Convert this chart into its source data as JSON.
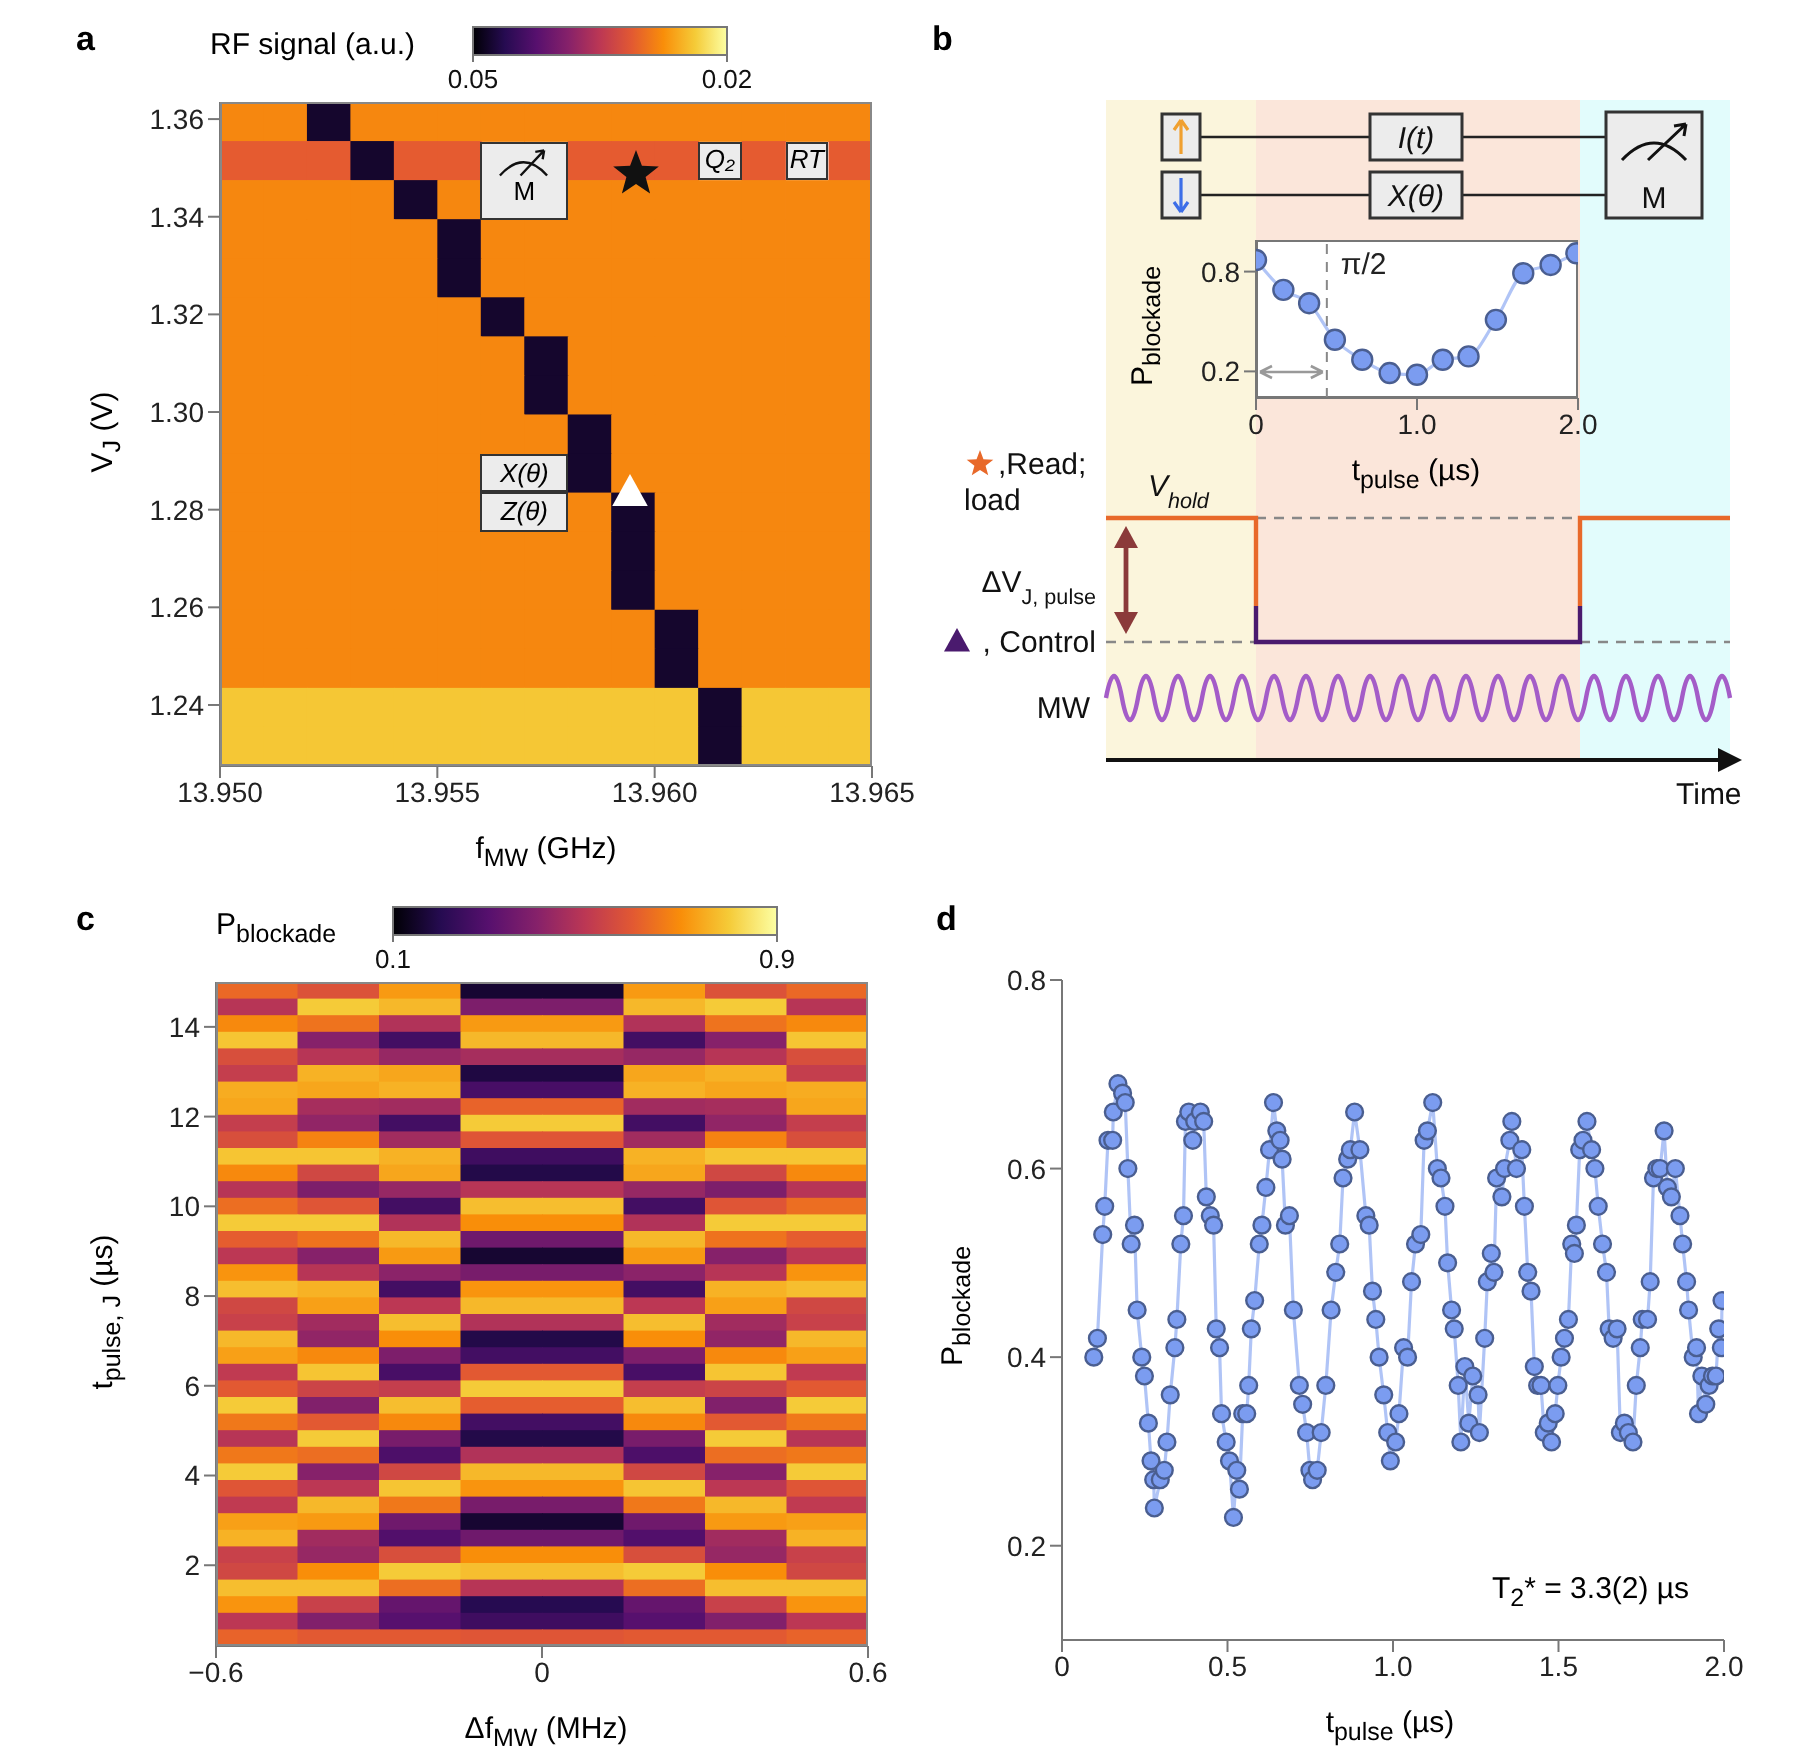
{
  "chart_data": [
    {
      "type": "heatmap",
      "title": "a",
      "clabel": "RF signal (a.u.)",
      "xlabel": "f$_{MW}$ (GHz)",
      "ylabel": "V$_{J}$ (V)",
      "x": [
        13.9505,
        13.9515,
        13.9525,
        13.9535,
        13.9545,
        13.9555,
        13.9565,
        13.9575,
        13.9585,
        13.9595,
        13.9605,
        13.9615,
        13.9625,
        13.9635,
        13.9645
      ],
      "y": [
        1.3595,
        1.3515,
        1.3435,
        1.3355,
        1.3275,
        1.3195,
        1.3115,
        1.3035,
        1.2955,
        1.2875,
        1.2795,
        1.2715,
        1.2635,
        1.2555,
        1.2475,
        1.2395,
        1.2315
      ],
      "cells": [
        [
          0.028,
          0.028,
          0.048,
          0.028,
          0.028,
          0.028,
          0.028,
          0.028,
          0.028,
          0.028,
          0.028,
          0.028,
          0.028,
          0.028,
          0.028
        ],
        [
          0.031,
          0.031,
          0.031,
          0.048,
          0.031,
          0.031,
          null,
          null,
          0.031,
          0.031,
          0.031,
          null,
          0.031,
          null,
          0.031
        ],
        [
          0.028,
          0.028,
          0.028,
          0.028,
          0.048,
          0.028,
          null,
          null,
          0.028,
          0.028,
          0.028,
          0.028,
          0.028,
          0.028,
          0.028
        ],
        [
          0.028,
          0.028,
          0.028,
          0.028,
          0.028,
          0.048,
          0.028,
          0.028,
          0.028,
          0.028,
          0.028,
          0.028,
          0.028,
          0.028,
          0.028
        ],
        [
          0.028,
          0.028,
          0.028,
          0.028,
          0.028,
          0.048,
          0.028,
          0.028,
          0.028,
          0.028,
          0.028,
          0.028,
          0.028,
          0.028,
          0.028
        ],
        [
          0.028,
          0.028,
          0.028,
          0.028,
          0.028,
          0.028,
          0.048,
          0.028,
          0.028,
          0.028,
          0.028,
          0.028,
          0.028,
          0.028,
          0.028
        ],
        [
          0.028,
          0.028,
          0.028,
          0.028,
          0.028,
          0.028,
          0.028,
          0.048,
          0.028,
          0.028,
          0.028,
          0.028,
          0.028,
          0.028,
          0.028
        ],
        [
          0.028,
          0.028,
          0.028,
          0.028,
          0.028,
          0.028,
          0.028,
          0.048,
          0.028,
          0.028,
          0.028,
          0.028,
          0.028,
          0.028,
          0.028
        ],
        [
          0.028,
          0.028,
          0.028,
          0.028,
          0.028,
          0.028,
          0.028,
          0.028,
          0.048,
          0.028,
          0.028,
          0.028,
          0.028,
          0.028,
          0.028
        ],
        [
          0.028,
          0.028,
          0.028,
          0.028,
          0.028,
          0.028,
          null,
          null,
          0.048,
          0.028,
          0.028,
          0.028,
          0.028,
          0.028,
          0.028
        ],
        [
          0.028,
          0.028,
          0.028,
          0.028,
          0.028,
          0.028,
          null,
          null,
          0.028,
          0.048,
          0.028,
          0.028,
          0.028,
          0.028,
          0.028
        ],
        [
          0.028,
          0.028,
          0.028,
          0.028,
          0.028,
          0.028,
          0.028,
          0.028,
          0.028,
          0.048,
          0.028,
          0.028,
          0.028,
          0.028,
          0.028
        ],
        [
          0.028,
          0.028,
          0.028,
          0.028,
          0.028,
          0.028,
          0.028,
          0.028,
          0.028,
          0.048,
          0.028,
          0.028,
          0.028,
          0.028,
          0.028
        ],
        [
          0.028,
          0.028,
          0.028,
          0.028,
          0.028,
          0.028,
          0.028,
          0.028,
          0.028,
          0.028,
          0.048,
          0.028,
          0.028,
          0.028,
          0.028
        ],
        [
          0.028,
          0.028,
          0.028,
          0.028,
          0.028,
          0.028,
          0.028,
          0.028,
          0.028,
          0.028,
          0.048,
          0.028,
          0.028,
          0.028,
          0.028
        ],
        [
          0.024,
          0.024,
          0.024,
          0.024,
          0.024,
          0.024,
          0.024,
          0.024,
          0.024,
          0.024,
          0.024,
          0.048,
          0.024,
          0.024,
          0.024
        ],
        [
          0.024,
          0.024,
          0.024,
          0.024,
          0.024,
          0.024,
          0.024,
          0.024,
          0.024,
          0.024,
          0.024,
          0.048,
          0.024,
          0.024,
          0.024
        ]
      ],
      "xlim": [
        13.95,
        13.965
      ],
      "ylim": [
        1.2275,
        1.3635
      ],
      "xticks": [
        {
          "value": 13.95,
          "label": "13.950"
        },
        {
          "value": 13.955,
          "label": "13.955"
        },
        {
          "value": 13.96,
          "label": "13.960"
        },
        {
          "value": 13.965,
          "label": "13.965"
        }
      ],
      "yticks": [
        1.24,
        1.26,
        1.28,
        {
          "value": 1.3,
          "label": "1.30"
        },
        1.32,
        1.34,
        1.36
      ],
      "clim": [
        0.05,
        0.02
      ],
      "cticks": [
        0.05,
        0.02
      ],
      "annotations": [
        "M",
        "Q₂",
        "RT",
        "X(θ)",
        "Z(θ)"
      ]
    },
    {
      "type": "line",
      "x": [
        0,
        0.17,
        0.33,
        0.49,
        0.66,
        0.83,
        1.0,
        1.16,
        1.32,
        1.49,
        1.66,
        1.83,
        1.99
      ],
      "values": [
        0.87,
        0.69,
        0.61,
        0.39,
        0.27,
        0.19,
        0.18,
        0.27,
        0.29,
        0.51,
        0.79,
        0.84,
        0.91
      ],
      "color": "#7b9cf0",
      "marker": "circle",
      "xlim": [
        0,
        2.0
      ],
      "ylim": [
        0.04,
        0.99
      ],
      "xticks": [
        0,
        {
          "value": 1,
          "label": "1.0"
        },
        {
          "value": 2,
          "label": "2.0"
        }
      ],
      "yticks": [
        0.2,
        0.8
      ],
      "xlabel": "t$_{pulse}$ (µs)",
      "ylabel": "P$_{blockade}$",
      "ref_lines": [
        {
          "axis": "x",
          "value": 0.44,
          "label": "π/2",
          "color": "#888888",
          "line_style": "dashed"
        }
      ]
    },
    {
      "type": "other",
      "title": "b",
      "annotations": [
        "I(t)",
        "X(θ)",
        "M",
        ",Read;",
        "load",
        "V$_{hold}$",
        "ΔV$_{J, pulse}$",
        ", Control",
        "MW",
        "Time"
      ]
    },
    {
      "type": "heatmap",
      "title": "c",
      "clabel": "P$_{blockade}$",
      "xlabel": "Δf$_{MW}$ (MHz)",
      "ylabel": "t$_{pulse, J}$ (µs)",
      "x": [
        -0.525,
        -0.375,
        -0.225,
        -0.075,
        0.075,
        0.225,
        0.375,
        0.525
      ],
      "y": [
        14.815,
        14.445,
        14.075,
        13.705,
        13.335,
        12.965,
        12.595,
        12.225,
        11.855,
        11.485,
        11.115,
        10.745,
        10.375,
        10.005,
        9.635,
        9.265,
        8.895,
        8.525,
        8.155,
        7.785,
        7.415,
        7.045,
        6.675,
        6.305,
        5.935,
        5.565,
        5.195,
        4.825,
        4.455,
        4.085,
        3.715,
        3.345,
        2.975,
        2.605,
        2.235,
        1.865,
        1.495,
        1.125,
        0.755,
        0.385
      ],
      "cells": [
        [
          0.63,
          0.58,
          0.72,
          0.16,
          0.16,
          0.72,
          0.58,
          0.63
        ],
        [
          0.49,
          0.8,
          0.77,
          0.38,
          0.38,
          0.77,
          0.8,
          0.49
        ],
        [
          0.69,
          0.65,
          0.48,
          0.72,
          0.72,
          0.48,
          0.65,
          0.69
        ],
        [
          0.79,
          0.4,
          0.26,
          0.77,
          0.77,
          0.26,
          0.4,
          0.79
        ],
        [
          0.57,
          0.49,
          0.43,
          0.46,
          0.46,
          0.43,
          0.49,
          0.57
        ],
        [
          0.52,
          0.76,
          0.74,
          0.18,
          0.18,
          0.74,
          0.76,
          0.52
        ],
        [
          0.75,
          0.74,
          0.76,
          0.27,
          0.27,
          0.76,
          0.74,
          0.75
        ],
        [
          0.74,
          0.46,
          0.45,
          0.62,
          0.62,
          0.45,
          0.46,
          0.74
        ],
        [
          0.52,
          0.42,
          0.26,
          0.8,
          0.8,
          0.26,
          0.42,
          0.52
        ],
        [
          0.57,
          0.68,
          0.45,
          0.59,
          0.59,
          0.45,
          0.68,
          0.57
        ],
        [
          0.79,
          0.79,
          0.76,
          0.25,
          0.25,
          0.76,
          0.79,
          0.79
        ],
        [
          0.69,
          0.55,
          0.74,
          0.19,
          0.19,
          0.74,
          0.55,
          0.69
        ],
        [
          0.49,
          0.38,
          0.43,
          0.49,
          0.49,
          0.43,
          0.38,
          0.49
        ],
        [
          0.64,
          0.59,
          0.26,
          0.78,
          0.78,
          0.26,
          0.59,
          0.64
        ],
        [
          0.8,
          0.8,
          0.48,
          0.7,
          0.7,
          0.48,
          0.8,
          0.8
        ],
        [
          0.61,
          0.65,
          0.77,
          0.35,
          0.35,
          0.77,
          0.65,
          0.61
        ],
        [
          0.5,
          0.4,
          0.72,
          0.16,
          0.16,
          0.72,
          0.4,
          0.5
        ],
        [
          0.71,
          0.49,
          0.41,
          0.37,
          0.37,
          0.41,
          0.49,
          0.71
        ],
        [
          0.78,
          0.76,
          0.26,
          0.71,
          0.71,
          0.26,
          0.76,
          0.78
        ],
        [
          0.55,
          0.73,
          0.5,
          0.77,
          0.77,
          0.5,
          0.73,
          0.55
        ],
        [
          0.53,
          0.45,
          0.78,
          0.48,
          0.48,
          0.78,
          0.45,
          0.53
        ],
        [
          0.77,
          0.42,
          0.7,
          0.19,
          0.19,
          0.7,
          0.42,
          0.77
        ],
        [
          0.73,
          0.69,
          0.38,
          0.26,
          0.26,
          0.38,
          0.69,
          0.73
        ],
        [
          0.51,
          0.79,
          0.27,
          0.6,
          0.6,
          0.27,
          0.79,
          0.51
        ],
        [
          0.6,
          0.54,
          0.52,
          0.8,
          0.8,
          0.52,
          0.54,
          0.6
        ],
        [
          0.8,
          0.39,
          0.78,
          0.61,
          0.61,
          0.78,
          0.39,
          0.8
        ],
        [
          0.66,
          0.6,
          0.69,
          0.26,
          0.26,
          0.69,
          0.6,
          0.66
        ],
        [
          0.49,
          0.8,
          0.37,
          0.19,
          0.19,
          0.37,
          0.8,
          0.49
        ],
        [
          0.66,
          0.64,
          0.28,
          0.48,
          0.48,
          0.28,
          0.64,
          0.66
        ],
        [
          0.8,
          0.4,
          0.55,
          0.77,
          0.77,
          0.55,
          0.4,
          0.8
        ],
        [
          0.59,
          0.5,
          0.79,
          0.71,
          0.71,
          0.79,
          0.5,
          0.59
        ],
        [
          0.51,
          0.77,
          0.66,
          0.37,
          0.37,
          0.66,
          0.77,
          0.51
        ],
        [
          0.73,
          0.72,
          0.35,
          0.16,
          0.16,
          0.35,
          0.72,
          0.73
        ],
        [
          0.76,
          0.45,
          0.29,
          0.35,
          0.35,
          0.29,
          0.45,
          0.76
        ],
        [
          0.53,
          0.43,
          0.57,
          0.7,
          0.7,
          0.57,
          0.43,
          0.53
        ],
        [
          0.55,
          0.7,
          0.8,
          0.78,
          0.78,
          0.8,
          0.7,
          0.55
        ],
        [
          0.78,
          0.78,
          0.64,
          0.49,
          0.49,
          0.64,
          0.78,
          0.78
        ],
        [
          0.71,
          0.53,
          0.33,
          0.2,
          0.2,
          0.33,
          0.53,
          0.71
        ],
        [
          0.5,
          0.39,
          0.3,
          0.25,
          0.25,
          0.3,
          0.39,
          0.5
        ],
        [
          0.62,
          0.6,
          0.6,
          0.59,
          0.59,
          0.6,
          0.6,
          0.62
        ]
      ],
      "xlim": [
        -0.6,
        0.6
      ],
      "ylim": [
        0.2,
        15
      ],
      "xticks": [
        {
          "value": -0.6,
          "label": "−0.6"
        },
        0,
        0.6
      ],
      "yticks": [
        2,
        4,
        6,
        8,
        10,
        12,
        14
      ],
      "clim": [
        0.1,
        0.9
      ],
      "cticks": [
        0.1,
        0.9
      ]
    },
    {
      "type": "line",
      "title": "d",
      "color": "#7b9cf0",
      "marker": "circle",
      "xlabel": "t$_{pulse}$ (µs)",
      "ylabel": "P$_{blockade}$",
      "xlim": [
        0,
        2.0
      ],
      "ylim": [
        0.1,
        0.8
      ],
      "xticks": [
        0,
        0.5,
        {
          "value": 1,
          "label": "1.0"
        },
        1.5,
        {
          "value": 2,
          "label": "2.0"
        }
      ],
      "yticks": [
        0.2,
        0.4,
        0.6,
        0.8
      ],
      "annotations": [
        "T$_{2}$* = 3.3(2) µs"
      ],
      "x": [
        0.096,
        0.107,
        0.123,
        0.129,
        0.139,
        0.153,
        0.155,
        0.169,
        0.183,
        0.191,
        0.199,
        0.209,
        0.219,
        0.227,
        0.241,
        0.249,
        0.261,
        0.269,
        0.277,
        0.279,
        0.297,
        0.309,
        0.317,
        0.327,
        0.341,
        0.347,
        0.359,
        0.367,
        0.373,
        0.383,
        0.395,
        0.401,
        0.418,
        0.428,
        0.436,
        0.448,
        0.458,
        0.466,
        0.476,
        0.482,
        0.496,
        0.506,
        0.518,
        0.528,
        0.536,
        0.546,
        0.558,
        0.564,
        0.572,
        0.582,
        0.596,
        0.604,
        0.616,
        0.627,
        0.639,
        0.649,
        0.659,
        0.665,
        0.675,
        0.687,
        0.699,
        0.717,
        0.727,
        0.739,
        0.749,
        0.757,
        0.771,
        0.783,
        0.797,
        0.813,
        0.827,
        0.839,
        0.849,
        0.863,
        0.871,
        0.884,
        0.9,
        0.918,
        0.928,
        0.938,
        0.948,
        0.958,
        0.972,
        0.984,
        0.992,
        1.008,
        1.018,
        1.032,
        1.044,
        1.056,
        1.068,
        1.084,
        1.094,
        1.104,
        1.12,
        1.134,
        1.145,
        1.157,
        1.165,
        1.177,
        1.185,
        1.197,
        1.205,
        1.217,
        1.229,
        1.241,
        1.257,
        1.261,
        1.277,
        1.285,
        1.297,
        1.305,
        1.313,
        1.329,
        1.337,
        1.353,
        1.359,
        1.373,
        1.389,
        1.397,
        1.407,
        1.417,
        1.427,
        1.437,
        1.447,
        1.457,
        1.469,
        1.479,
        1.49,
        1.498,
        1.508,
        1.518,
        1.53,
        1.54,
        1.548,
        1.554,
        1.564,
        1.574,
        1.586,
        1.6,
        1.61,
        1.62,
        1.633,
        1.645,
        1.653,
        1.665,
        1.677,
        1.687,
        1.699,
        1.711,
        1.725,
        1.735,
        1.747,
        1.753,
        1.769,
        1.777,
        1.787,
        1.797,
        1.807,
        1.819,
        1.829,
        1.841,
        1.853,
        1.867,
        1.875,
        1.887,
        1.893,
        1.907,
        1.917,
        1.923,
        1.933,
        1.945,
        1.955,
        1.965,
        1.976,
        1.984,
        1.992,
        1.994
      ],
      "values": [
        0.4,
        0.42,
        0.53,
        0.56,
        0.63,
        0.63,
        0.66,
        0.69,
        0.68,
        0.67,
        0.6,
        0.52,
        0.54,
        0.45,
        0.4,
        0.38,
        0.33,
        0.29,
        0.27,
        0.24,
        0.27,
        0.28,
        0.31,
        0.36,
        0.41,
        0.44,
        0.52,
        0.55,
        0.65,
        0.66,
        0.63,
        0.65,
        0.66,
        0.65,
        0.57,
        0.55,
        0.54,
        0.43,
        0.41,
        0.34,
        0.31,
        0.29,
        0.23,
        0.28,
        0.26,
        0.34,
        0.34,
        0.37,
        0.43,
        0.46,
        0.52,
        0.54,
        0.58,
        0.62,
        0.67,
        0.64,
        0.63,
        0.61,
        0.54,
        0.55,
        0.45,
        0.37,
        0.35,
        0.32,
        0.28,
        0.27,
        0.28,
        0.32,
        0.37,
        0.45,
        0.49,
        0.52,
        0.59,
        0.61,
        0.62,
        0.66,
        0.62,
        0.55,
        0.54,
        0.47,
        0.44,
        0.4,
        0.36,
        0.32,
        0.29,
        0.31,
        0.34,
        0.41,
        0.4,
        0.48,
        0.52,
        0.53,
        0.63,
        0.64,
        0.67,
        0.6,
        0.59,
        0.56,
        0.5,
        0.45,
        0.43,
        0.37,
        0.31,
        0.39,
        0.33,
        0.38,
        0.36,
        0.32,
        0.42,
        0.48,
        0.51,
        0.49,
        0.59,
        0.57,
        0.6,
        0.63,
        0.65,
        0.6,
        0.62,
        0.56,
        0.49,
        0.47,
        0.39,
        0.37,
        0.37,
        0.32,
        0.33,
        0.31,
        0.34,
        0.37,
        0.4,
        0.42,
        0.44,
        0.52,
        0.51,
        0.54,
        0.62,
        0.63,
        0.65,
        0.62,
        0.6,
        0.56,
        0.52,
        0.49,
        0.43,
        0.42,
        0.43,
        0.32,
        0.33,
        0.32,
        0.31,
        0.37,
        0.41,
        0.44,
        0.44,
        0.48,
        0.59,
        0.6,
        0.6,
        0.64,
        0.58,
        0.57,
        0.6,
        0.55,
        0.52,
        0.48,
        0.45,
        0.4,
        0.41,
        0.34,
        0.38,
        0.35,
        0.37,
        0.38,
        0.38,
        0.43,
        0.41,
        0.46
      ]
    }
  ]
}
